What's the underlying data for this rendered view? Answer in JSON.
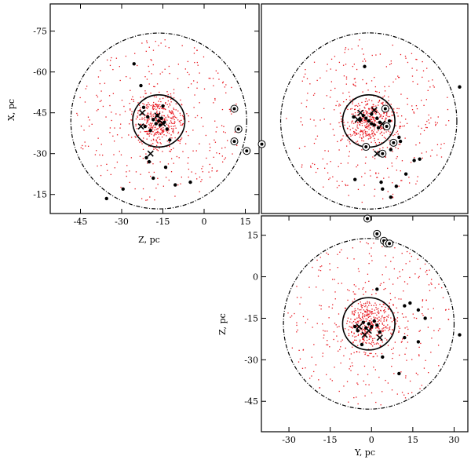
{
  "chart_data": [
    {
      "type": "scatter",
      "panel": "top-left",
      "xlabel": "Z, pc",
      "ylabel": "X, pc",
      "xlim": [
        -56,
        20
      ],
      "ylim": [
        -85,
        -8
      ],
      "x_inverted": false,
      "y_inverted": true,
      "xticks": [
        -45,
        -30,
        -15,
        0,
        15
      ],
      "yticks": [
        -75,
        -60,
        -45,
        -30,
        -15
      ],
      "circles": [
        {
          "cx": -16.5,
          "cy": -42,
          "r": 9.5,
          "style": "solid"
        },
        {
          "cx": -16.5,
          "cy": -42,
          "r": 32,
          "style": "dash-dot"
        }
      ],
      "field_stars": {
        "count": 700,
        "center": [
          -16.5,
          -42
        ],
        "sigma": [
          6,
          6
        ],
        "color": "#e8141c"
      },
      "series": [
        {
          "points": [
            [
              -16.5,
              -42
            ],
            [
              -17.5,
              -41
            ],
            [
              -15.5,
              -43
            ],
            [
              -16,
              -40.5
            ],
            [
              -17,
              -44
            ],
            [
              -18.5,
              -42.5
            ],
            [
              -14.5,
              -41.5
            ],
            [
              -20.5,
              -43.5
            ],
            [
              -21.5,
              -40
            ],
            [
              -19.5,
              -38.5
            ],
            [
              -13.5,
              -39
            ],
            [
              -22,
              -47
            ],
            [
              -15,
              -47.5
            ],
            [
              -23,
              -55
            ],
            [
              -25.5,
              -63
            ],
            [
              -12.5,
              -35
            ],
            [
              -21,
              -28.5
            ],
            [
              -20,
              -27
            ],
            [
              -14,
              -25
            ],
            [
              -18.5,
              -21
            ],
            [
              -10.5,
              -18.5
            ],
            [
              -29.5,
              -17
            ],
            [
              -35.5,
              -13.5
            ],
            [
              -5,
              -19.5
            ]
          ],
          "marker": "filled-circle"
        },
        {
          "points": [
            [
              -22.5,
              -45
            ],
            [
              -23,
              -40
            ],
            [
              -19.5,
              -30
            ],
            [
              -17,
              -44
            ],
            [
              -15,
              -41
            ]
          ],
          "marker": "cross"
        },
        {
          "points": [
            [
              11,
              -46.5
            ],
            [
              12.5,
              -39
            ],
            [
              11,
              -34.5
            ],
            [
              15.5,
              -31
            ],
            [
              21,
              -33.5
            ]
          ],
          "marker": "circled-dot"
        }
      ]
    },
    {
      "type": "scatter",
      "panel": "top-right",
      "xlabel": "",
      "ylabel": "",
      "xlim": [
        -40,
        35
      ],
      "ylim": [
        -85,
        -8
      ],
      "y_inverted": true,
      "circles": [
        {
          "cx": -1,
          "cy": -42,
          "r": 9.5,
          "style": "solid"
        },
        {
          "cx": -1,
          "cy": -42,
          "r": 32,
          "style": "dash-dot"
        }
      ],
      "field_stars": {
        "count": 700,
        "center": [
          -1,
          -42
        ],
        "sigma": [
          6,
          6
        ],
        "color": "#e8141c"
      },
      "series": [
        {
          "points": [
            [
              -1,
              -42
            ],
            [
              0,
              -41
            ],
            [
              -2,
              -43
            ],
            [
              1,
              -40.5
            ],
            [
              -3,
              -44
            ],
            [
              2,
              -43
            ],
            [
              -4,
              -42.5
            ],
            [
              3,
              -41.5
            ],
            [
              0,
              -44.5
            ],
            [
              -6.5,
              -43.5
            ],
            [
              6.5,
              -42
            ],
            [
              2.5,
              -39.5
            ],
            [
              -2.5,
              -62
            ],
            [
              32,
              -54.5
            ],
            [
              10,
              -36
            ],
            [
              10.5,
              -34.5
            ],
            [
              7,
              -31.5
            ],
            [
              17.5,
              -28
            ],
            [
              15.5,
              -27.5
            ],
            [
              12.5,
              -22.5
            ],
            [
              -6,
              -20.5
            ],
            [
              3.5,
              -19.5
            ],
            [
              4,
              -17
            ],
            [
              9,
              -18
            ],
            [
              7,
              -14
            ]
          ],
          "marker": "filled-circle"
        },
        {
          "points": [
            [
              -4,
              -45
            ],
            [
              -5,
              -42.5
            ],
            [
              1,
              -46
            ],
            [
              4,
              -41
            ],
            [
              2,
              -30
            ]
          ],
          "marker": "cross"
        },
        {
          "points": [
            [
              5,
              -46.5
            ],
            [
              5.5,
              -40
            ],
            [
              8,
              -34
            ],
            [
              -2,
              -32.5
            ],
            [
              4,
              -30
            ]
          ],
          "marker": "circled-dot"
        }
      ]
    },
    {
      "type": "scatter",
      "panel": "bottom-right",
      "xlabel": "Y, pc",
      "ylabel": "Z, pc",
      "xlim": [
        -40,
        35
      ],
      "ylim": [
        -56,
        22
      ],
      "y_inverted": false,
      "xticks": [
        -30,
        -15,
        0,
        15,
        30
      ],
      "yticks": [
        -45,
        -30,
        -15,
        0,
        15
      ],
      "circles": [
        {
          "cx": -1,
          "cy": -17,
          "r": 9.5,
          "style": "solid"
        },
        {
          "cx": -1,
          "cy": -17,
          "r": 31,
          "style": "dash-dot"
        }
      ],
      "field_stars": {
        "count": 700,
        "center": [
          -1,
          -17
        ],
        "sigma": [
          6,
          6
        ],
        "color": "#e8141c"
      },
      "series": [
        {
          "points": [
            [
              -1,
              -17
            ],
            [
              0,
              -18
            ],
            [
              1,
              -16
            ],
            [
              -2,
              -18.5
            ],
            [
              2,
              -17.5
            ],
            [
              -3,
              -16.5
            ],
            [
              3,
              -20
            ],
            [
              -6,
              -18
            ],
            [
              -5,
              -19.5
            ],
            [
              2,
              -4.5
            ],
            [
              -3.5,
              -24.5
            ],
            [
              4,
              -29
            ],
            [
              12,
              -10.5
            ],
            [
              14,
              -9.5
            ],
            [
              17,
              -12
            ],
            [
              19.5,
              -15
            ],
            [
              12,
              -22
            ],
            [
              17,
              -23.5
            ],
            [
              32,
              -21
            ],
            [
              10,
              -35
            ]
          ],
          "marker": "filled-circle"
        },
        {
          "points": [
            [
              -4.5,
              -18
            ],
            [
              -1,
              -19.5
            ],
            [
              -2.5,
              -21
            ],
            [
              3,
              -22
            ]
          ],
          "marker": "cross"
        },
        {
          "points": [
            [
              -1.5,
              21
            ],
            [
              2,
              15.5
            ],
            [
              4.5,
              13
            ],
            [
              5.5,
              12
            ],
            [
              6.5,
              12
            ]
          ],
          "marker": "circled-dot"
        }
      ]
    }
  ]
}
